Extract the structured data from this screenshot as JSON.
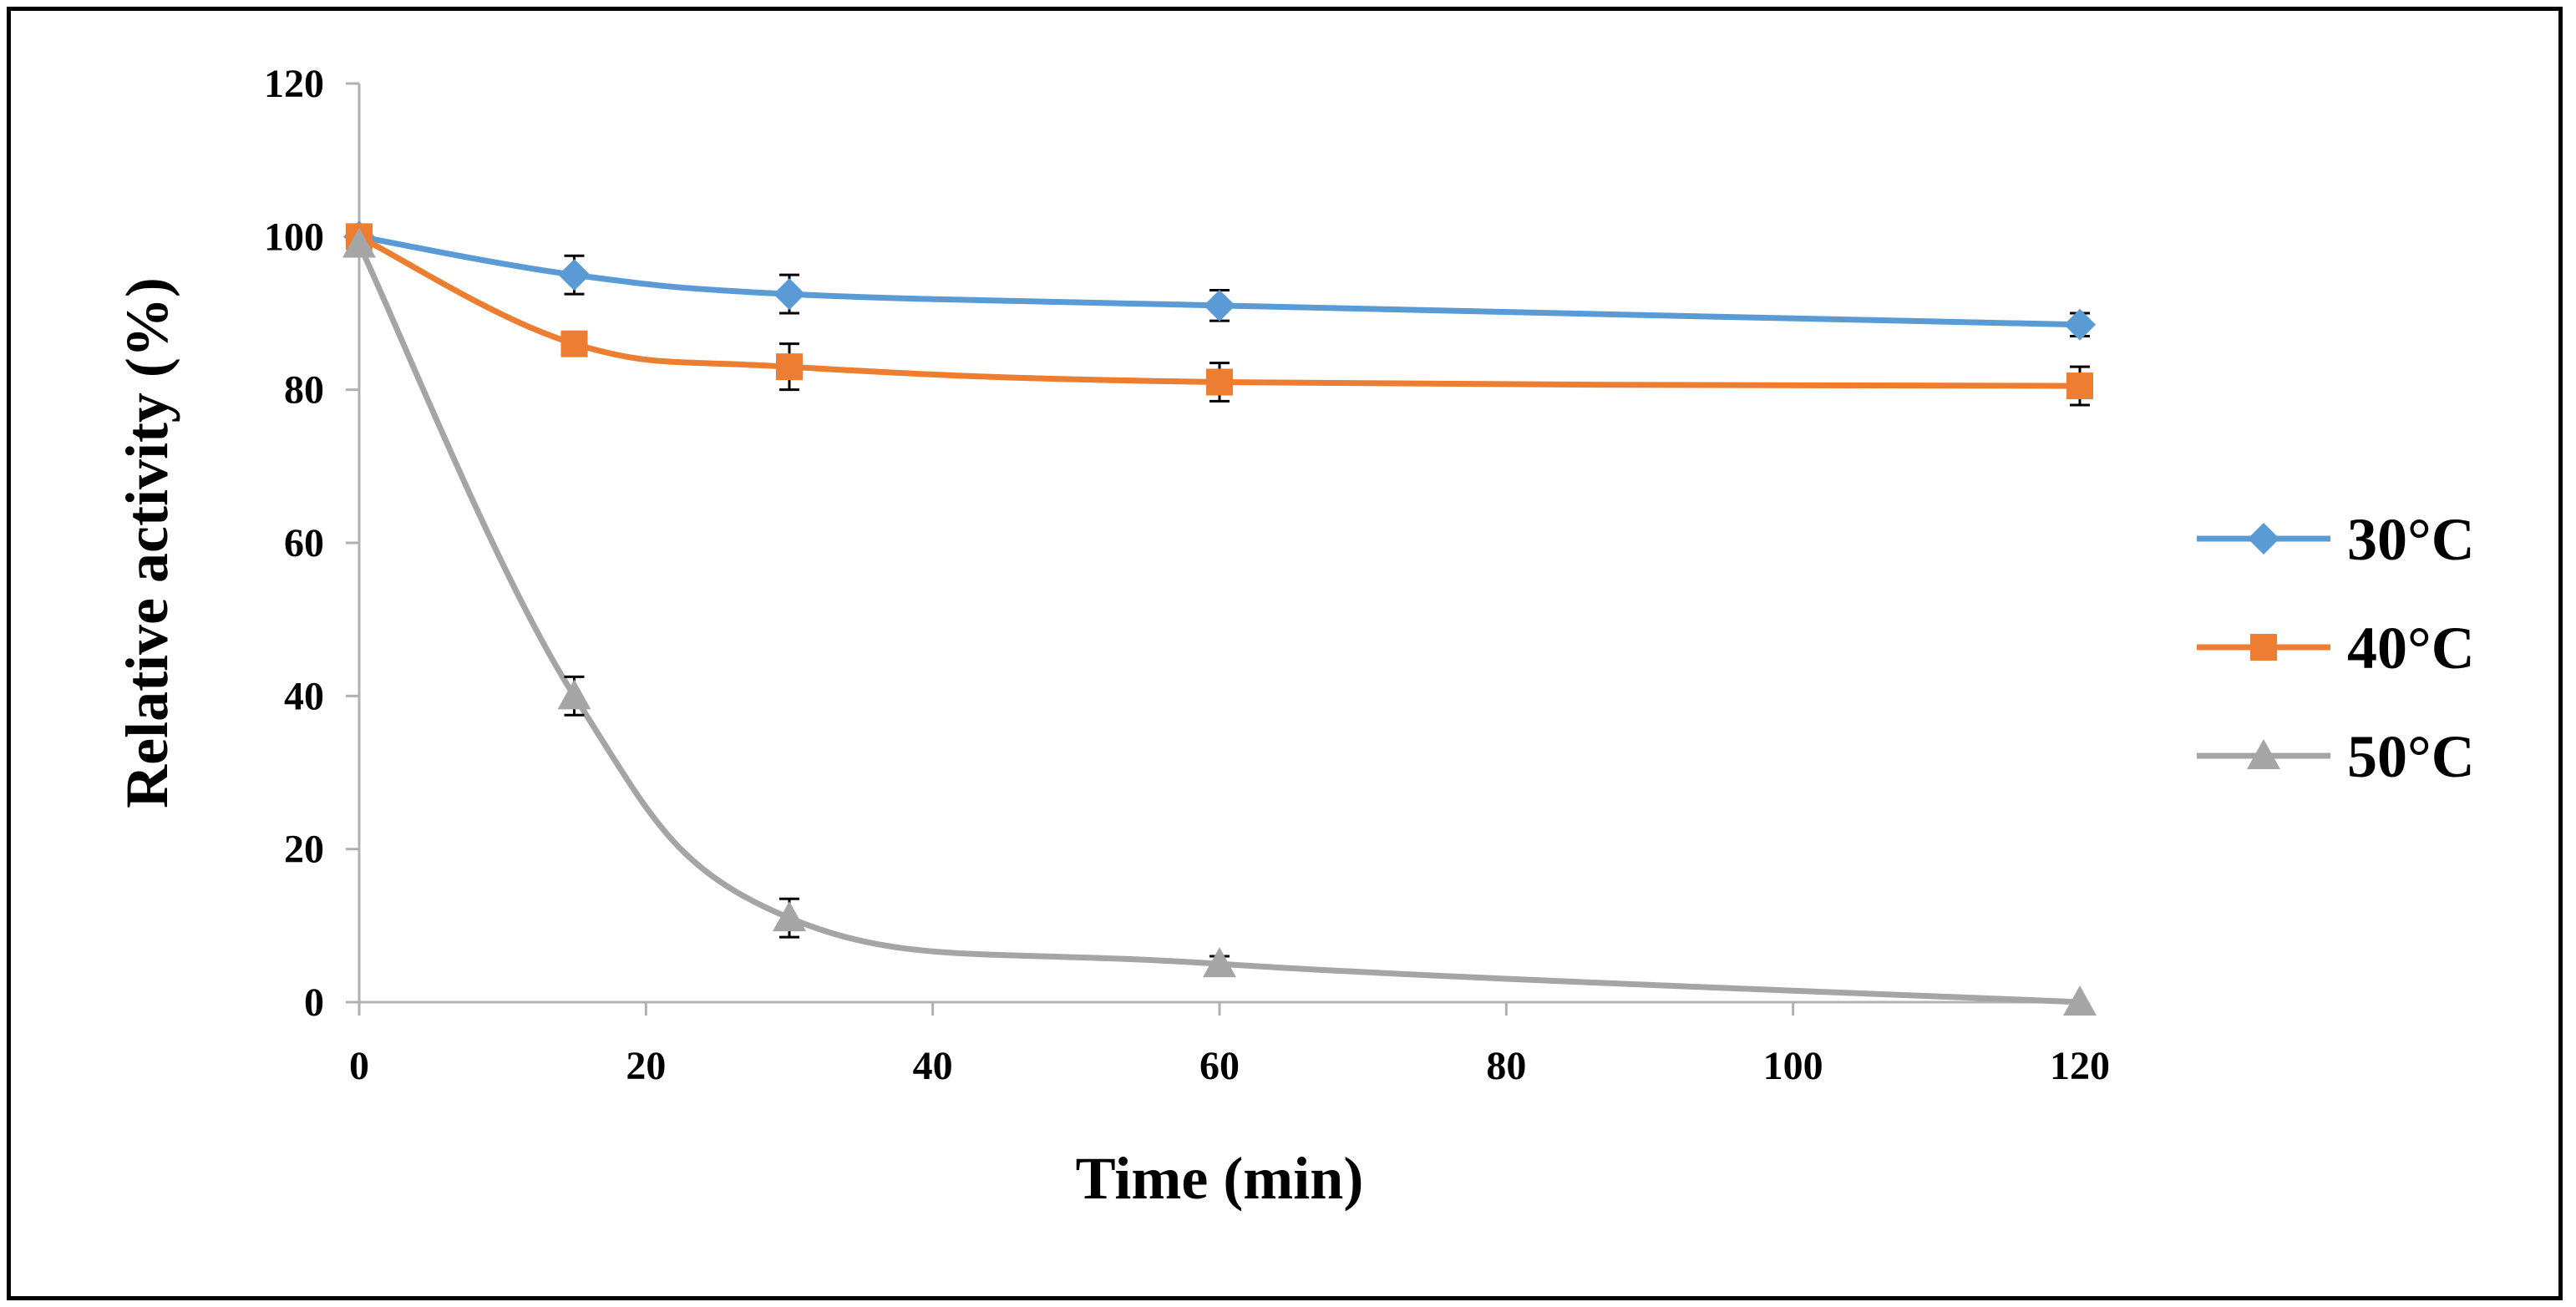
{
  "chart_data": {
    "type": "line",
    "title": "",
    "xlabel": "Time (min)",
    "ylabel": "Relative activity (%)",
    "xlim": [
      0,
      120
    ],
    "ylim": [
      0,
      120
    ],
    "xticks": [
      0,
      20,
      40,
      60,
      80,
      100,
      120
    ],
    "yticks": [
      0,
      20,
      40,
      60,
      80,
      100,
      120
    ],
    "grid": false,
    "legend_position": "right",
    "x": [
      0,
      15,
      30,
      60,
      120
    ],
    "series": [
      {
        "name": "30°C",
        "color": "#5B9BD5",
        "marker": "diamond",
        "values": [
          100,
          95,
          92.5,
          91,
          88.5
        ],
        "errors": [
          0,
          2.5,
          2.5,
          2,
          1.5
        ]
      },
      {
        "name": "40°C",
        "color": "#ED7D31",
        "marker": "square",
        "values": [
          100,
          86,
          83,
          81,
          80.5
        ],
        "errors": [
          0,
          1,
          3,
          2.5,
          2.5
        ]
      },
      {
        "name": "50°C",
        "color": "#A5A5A5",
        "marker": "triangle",
        "values": [
          99,
          40,
          11,
          5,
          0
        ],
        "errors": [
          0,
          2.5,
          2.5,
          1,
          0
        ]
      }
    ]
  }
}
